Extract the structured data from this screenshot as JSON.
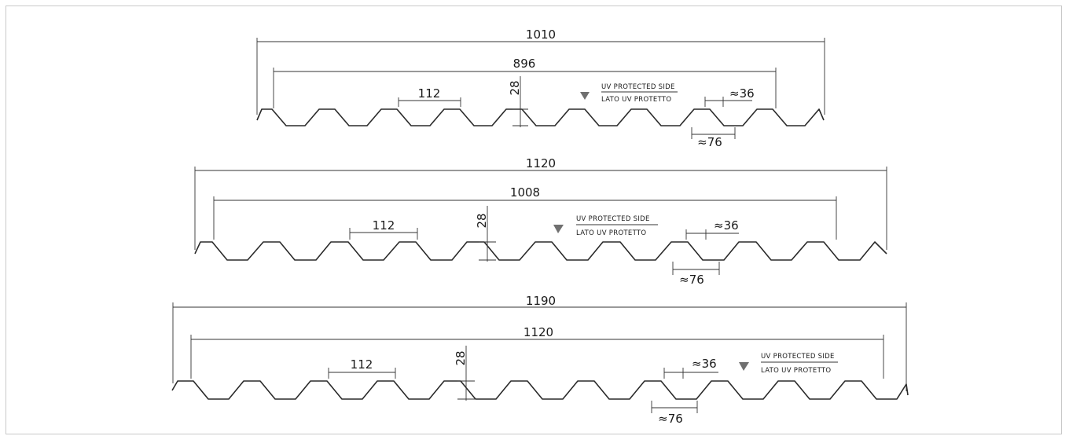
{
  "profiles": [
    {
      "overall_width": "1010",
      "useful_width": "896",
      "pitch": "112",
      "height": "28",
      "crest": "≈36",
      "valley": "≈76",
      "uv_line1": "UV PROTECTED SIDE",
      "uv_line2": "LATO UV PROTETTO"
    },
    {
      "overall_width": "1120",
      "useful_width": "1008",
      "pitch": "112",
      "height": "28",
      "crest": "≈36",
      "valley": "≈76",
      "uv_line1": "UV PROTECTED SIDE",
      "uv_line2": "LATO UV PROTETTO"
    },
    {
      "overall_width": "1190",
      "useful_width": "1120",
      "pitch": "112",
      "height": "28",
      "crest": "≈36",
      "valley": "≈76",
      "uv_line1": "UV PROTECTED SIDE",
      "uv_line2": "LATO UV PROTETTO"
    }
  ],
  "colors": {
    "line": "#2a2a2a",
    "marker": "#707070",
    "border": "#c9c9c9"
  }
}
